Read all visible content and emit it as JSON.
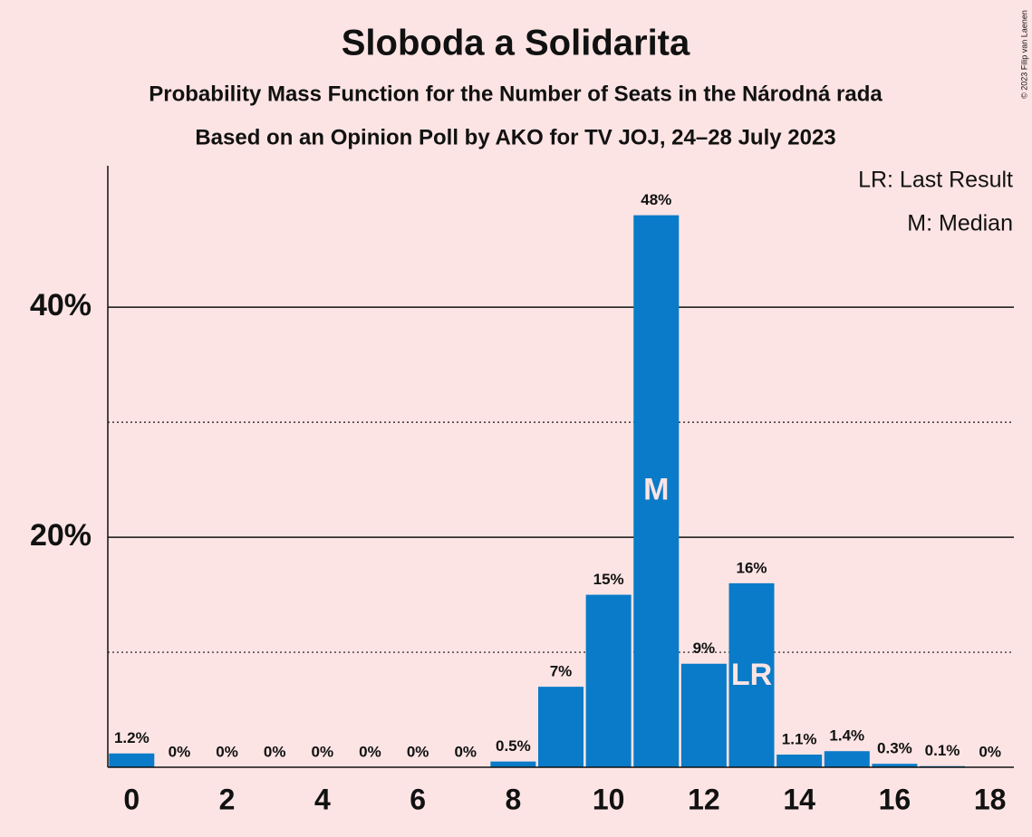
{
  "chart_data": {
    "type": "bar",
    "title": "Sloboda a Solidarita",
    "subtitle": "Probability Mass Function for the Number of Seats in the Národná rada",
    "subtitle2": "Based on an Opinion Poll by AKO for TV JOJ, 24–28 July 2023",
    "copyright": "© 2023 Filip van Laenen",
    "legend": [
      "LR: Last Result",
      "M: Median"
    ],
    "x": [
      0,
      1,
      2,
      3,
      4,
      5,
      6,
      7,
      8,
      9,
      10,
      11,
      12,
      13,
      14,
      15,
      16,
      17,
      18
    ],
    "values": [
      1.2,
      0,
      0,
      0,
      0,
      0,
      0,
      0,
      0.5,
      7,
      15,
      48,
      9,
      16,
      1.1,
      1.4,
      0.3,
      0.1,
      0
    ],
    "value_labels": [
      "1.2%",
      "0%",
      "0%",
      "0%",
      "0%",
      "0%",
      "0%",
      "0%",
      "0.5%",
      "7%",
      "15%",
      "48%",
      "9%",
      "16%",
      "1.1%",
      "1.4%",
      "0.3%",
      "0.1%",
      "0%"
    ],
    "color": "#0a7bc8",
    "xlim": [
      -0.5,
      18.5
    ],
    "xticks": [
      0,
      2,
      4,
      6,
      8,
      10,
      12,
      14,
      16,
      18
    ],
    "ylim": [
      0,
      52.3
    ],
    "yticks": [
      {
        "value": 20,
        "label": "20%"
      },
      {
        "value": 40,
        "label": "40%"
      }
    ],
    "minor_yticks": [
      10,
      30
    ],
    "grid": true,
    "annotations": [
      {
        "text": "M",
        "x": 11
      },
      {
        "text": "LR",
        "x": 13
      }
    ]
  }
}
